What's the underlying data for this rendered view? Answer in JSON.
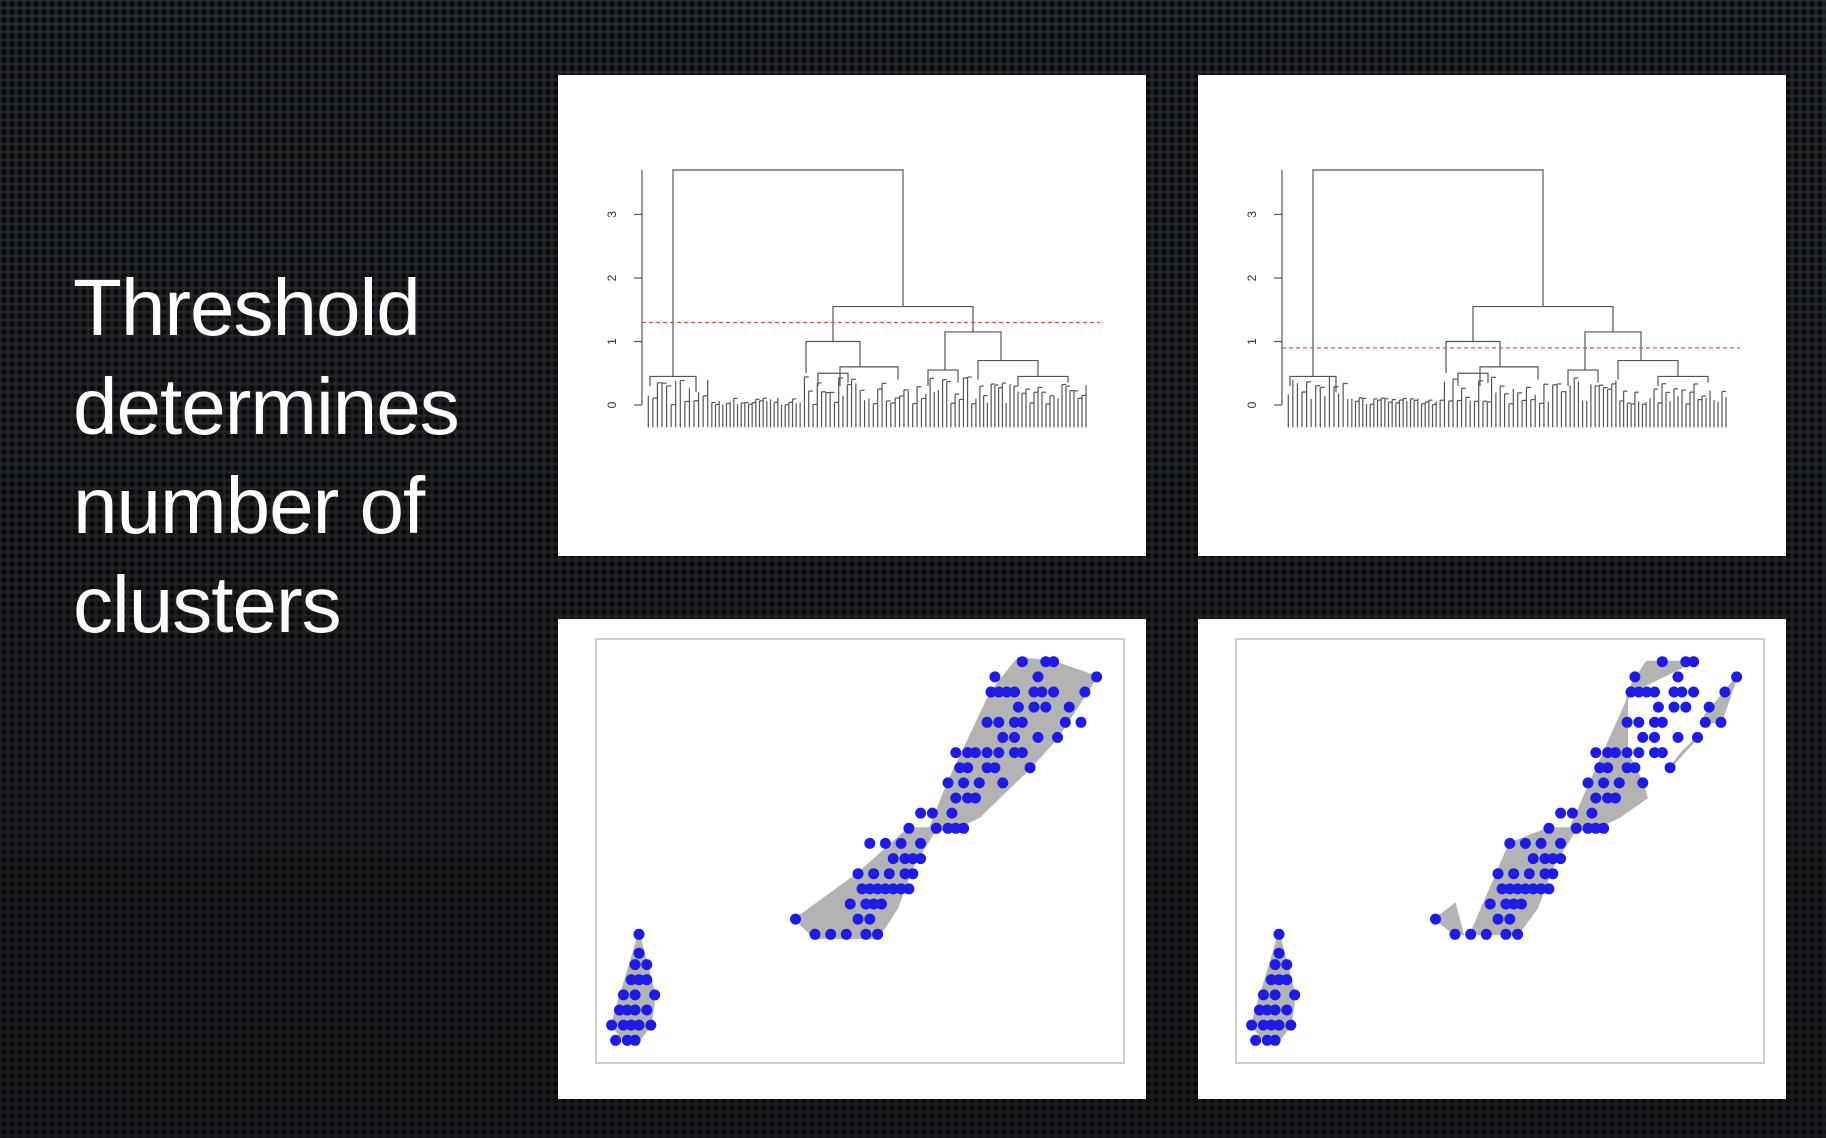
{
  "caption": {
    "lines": [
      "Threshold",
      "determines",
      "number of",
      "clusters"
    ]
  },
  "colors": {
    "threshold_line": "#e8504a",
    "points": "#1c1ce6",
    "hull_fill": "#b3b3b3",
    "dendrogram_stroke": "#555555"
  },
  "dendrogram_axis": {
    "ticks": [
      "0",
      "1",
      "2",
      "3"
    ],
    "tick_values": [
      0,
      1,
      2,
      3
    ],
    "range": [
      0,
      3.7
    ]
  },
  "dendrograms": [
    {
      "threshold": 1.3
    },
    {
      "threshold": 0.9
    }
  ],
  "scatter": {
    "points": [
      [
        1,
        1
      ],
      [
        1.3,
        1
      ],
      [
        1.5,
        1
      ],
      [
        0.9,
        1.4
      ],
      [
        1.2,
        1.4
      ],
      [
        1.4,
        1.4
      ],
      [
        1.6,
        1.4
      ],
      [
        1.9,
        1.4
      ],
      [
        1.1,
        1.8
      ],
      [
        1.3,
        1.8
      ],
      [
        1.5,
        1.8
      ],
      [
        1.8,
        1.8
      ],
      [
        1.2,
        2.2
      ],
      [
        1.5,
        2.2
      ],
      [
        2.0,
        2.2
      ],
      [
        1.4,
        2.6
      ],
      [
        1.6,
        2.6
      ],
      [
        1.8,
        2.6
      ],
      [
        1.5,
        3.0
      ],
      [
        1.8,
        3.0
      ],
      [
        1.6,
        3.3
      ],
      [
        1.6,
        3.8
      ],
      [
        5.6,
        4.2
      ],
      [
        6.1,
        3.8
      ],
      [
        6.5,
        3.8
      ],
      [
        6.9,
        3.8
      ],
      [
        7.4,
        3.8
      ],
      [
        7.7,
        3.8
      ],
      [
        7.2,
        4.2
      ],
      [
        7.5,
        4.2
      ],
      [
        7.0,
        4.6
      ],
      [
        7.4,
        4.6
      ],
      [
        7.6,
        4.6
      ],
      [
        7.8,
        4.6
      ],
      [
        7.3,
        5.0
      ],
      [
        7.5,
        5.0
      ],
      [
        7.7,
        5.0
      ],
      [
        7.9,
        5.0
      ],
      [
        8.1,
        5.0
      ],
      [
        8.3,
        5.0
      ],
      [
        8.5,
        5.0
      ],
      [
        7.2,
        5.4
      ],
      [
        7.6,
        5.4
      ],
      [
        8.0,
        5.4
      ],
      [
        8.4,
        5.4
      ],
      [
        8.6,
        5.4
      ],
      [
        8.1,
        5.8
      ],
      [
        8.4,
        5.8
      ],
      [
        8.6,
        5.8
      ],
      [
        8.8,
        5.8
      ],
      [
        7.5,
        6.2
      ],
      [
        7.9,
        6.2
      ],
      [
        8.3,
        6.2
      ],
      [
        8.8,
        6.2
      ],
      [
        8.5,
        6.6
      ],
      [
        9.2,
        6.6
      ],
      [
        9.5,
        6.6
      ],
      [
        9.7,
        6.6
      ],
      [
        9.9,
        6.6
      ],
      [
        8.8,
        7.0
      ],
      [
        9.1,
        7.0
      ],
      [
        9.6,
        7.0
      ],
      [
        9.7,
        7.4
      ],
      [
        10.0,
        7.4
      ],
      [
        10.2,
        7.4
      ],
      [
        9.5,
        7.8
      ],
      [
        9.9,
        7.8
      ],
      [
        10.3,
        7.8
      ],
      [
        10.9,
        7.8
      ],
      [
        9.8,
        8.2
      ],
      [
        10.0,
        8.2
      ],
      [
        10.5,
        8.2
      ],
      [
        10.7,
        8.2
      ],
      [
        11.6,
        8.2
      ],
      [
        9.7,
        8.6
      ],
      [
        10.0,
        8.6
      ],
      [
        10.2,
        8.6
      ],
      [
        10.5,
        8.6
      ],
      [
        10.8,
        8.6
      ],
      [
        11.2,
        8.6
      ],
      [
        11.4,
        8.6
      ],
      [
        10.9,
        9.0
      ],
      [
        11.2,
        9.0
      ],
      [
        11.8,
        9.0
      ],
      [
        12.3,
        9.0
      ],
      [
        10.5,
        9.4
      ],
      [
        10.8,
        9.4
      ],
      [
        11.2,
        9.4
      ],
      [
        11.4,
        9.4
      ],
      [
        12.5,
        9.4
      ],
      [
        12.9,
        9.4
      ],
      [
        11.3,
        9.8
      ],
      [
        11.7,
        9.8
      ],
      [
        12.0,
        9.8
      ],
      [
        12.6,
        9.8
      ],
      [
        10.6,
        10.2
      ],
      [
        10.8,
        10.2
      ],
      [
        11.0,
        10.2
      ],
      [
        11.2,
        10.2
      ],
      [
        11.7,
        10.2
      ],
      [
        11.9,
        10.2
      ],
      [
        12.2,
        10.2
      ],
      [
        10.7,
        10.6
      ],
      [
        11.8,
        10.6
      ],
      [
        13.0,
        10.2
      ],
      [
        11.4,
        11.0
      ],
      [
        12.0,
        11.0
      ],
      [
        12.2,
        11.0
      ],
      [
        13.3,
        10.6
      ]
    ],
    "hulls_left": [
      [
        [
          0.9,
          1.4
        ],
        [
          1.3,
          0.9
        ],
        [
          1.6,
          1.0
        ],
        [
          1.9,
          1.4
        ],
        [
          2.0,
          2.2
        ],
        [
          1.6,
          3.8
        ]
      ],
      [
        [
          5.6,
          4.2
        ],
        [
          6.1,
          3.7
        ],
        [
          7.7,
          3.7
        ],
        [
          8.2,
          4.5
        ],
        [
          8.6,
          5.6
        ],
        [
          9.2,
          6.6
        ],
        [
          8.5,
          6.6
        ],
        [
          7.2,
          5.4
        ]
      ],
      [
        [
          9.0,
          6.5
        ],
        [
          9.7,
          6.6
        ],
        [
          10.3,
          6.9
        ],
        [
          11.6,
          8.2
        ],
        [
          12.3,
          9.0
        ],
        [
          13.3,
          10.6
        ],
        [
          12.2,
          11.0
        ],
        [
          11.3,
          11.1
        ],
        [
          10.6,
          10.2
        ],
        [
          9.5,
          7.8
        ]
      ]
    ],
    "hulls_right": [
      [
        [
          0.9,
          1.4
        ],
        [
          1.3,
          0.9
        ],
        [
          1.6,
          1.0
        ],
        [
          1.9,
          1.4
        ],
        [
          2.0,
          2.2
        ],
        [
          1.6,
          3.8
        ]
      ],
      [
        [
          5.6,
          4.2
        ],
        [
          6.1,
          3.8
        ],
        [
          6.3,
          3.8
        ],
        [
          6.1,
          4.6
        ]
      ],
      [
        [
          6.5,
          3.8
        ],
        [
          7.7,
          3.8
        ],
        [
          8.2,
          4.5
        ],
        [
          8.6,
          5.6
        ],
        [
          9.2,
          6.6
        ],
        [
          8.5,
          6.6
        ],
        [
          7.5,
          6.2
        ]
      ],
      [
        [
          9.0,
          6.5
        ],
        [
          9.7,
          6.6
        ],
        [
          10.3,
          6.9
        ],
        [
          11.0,
          7.4
        ],
        [
          10.9,
          7.8
        ],
        [
          10.5,
          8.6
        ],
        [
          10.5,
          10.2
        ],
        [
          11.0,
          11.0
        ],
        [
          12.2,
          11.0
        ],
        [
          10.6,
          10.2
        ]
      ],
      [
        [
          11.6,
          8.2
        ],
        [
          12.3,
          9.0
        ],
        [
          11.9,
          8.6
        ]
      ],
      [
        [
          12.5,
          9.4
        ],
        [
          12.9,
          9.4
        ],
        [
          13.3,
          10.6
        ],
        [
          13.0,
          10.2
        ],
        [
          12.5,
          9.6
        ]
      ]
    ],
    "xrange": [
      0.5,
      14
    ],
    "yrange": [
      0.4,
      11.6
    ]
  }
}
